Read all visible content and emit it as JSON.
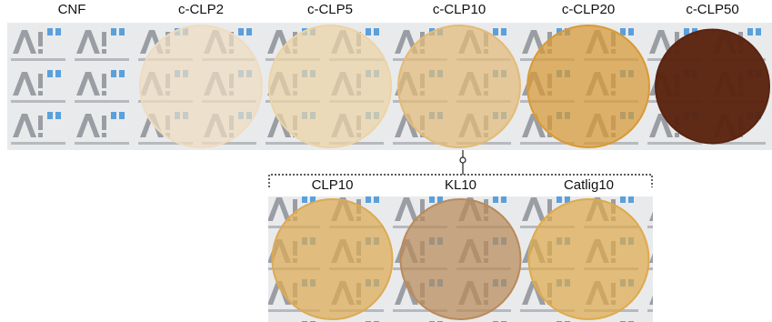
{
  "top_row": [
    {
      "label": "CNF",
      "disc_color": null
    },
    {
      "label": "c-CLP2",
      "disc_color": "#efdcc0"
    },
    {
      "label": "c-CLP5",
      "disc_color": "#ecd4a6"
    },
    {
      "label": "c-CLP10",
      "disc_color": "#e2bb78"
    },
    {
      "label": "c-CLP20",
      "disc_color": "#d89a36"
    },
    {
      "label": "c-CLP50",
      "disc_color": "#5a2410"
    }
  ],
  "bottom_row": [
    {
      "label": "CLP10",
      "disc_color": "#dcaa55"
    },
    {
      "label": "KL10",
      "disc_color": "#b98a5a"
    },
    {
      "label": "Catlig10",
      "disc_color": "#deaa4e"
    }
  ]
}
